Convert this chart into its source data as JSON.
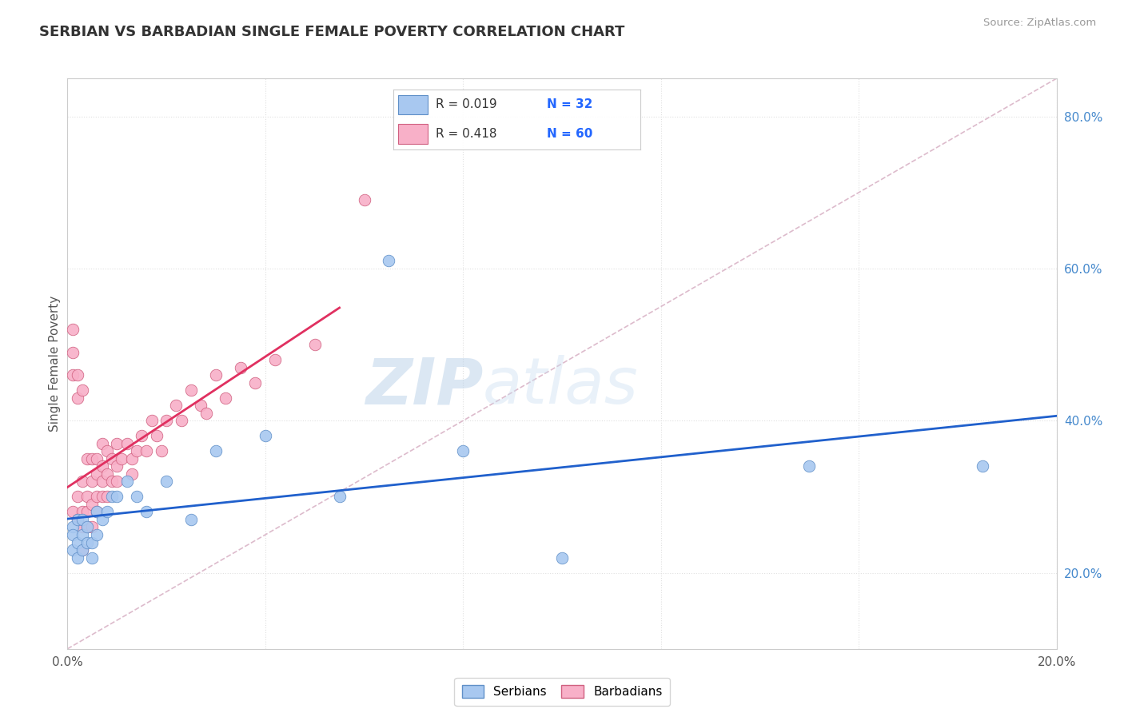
{
  "title": "SERBIAN VS BARBADIAN SINGLE FEMALE POVERTY CORRELATION CHART",
  "source": "Source: ZipAtlas.com",
  "ylabel": "Single Female Poverty",
  "xlim": [
    0.0,
    0.2
  ],
  "ylim": [
    0.1,
    0.85
  ],
  "x_ticks": [
    0.0,
    0.04,
    0.08,
    0.12,
    0.16,
    0.2
  ],
  "y_ticks_right": [
    0.2,
    0.4,
    0.6,
    0.8
  ],
  "watermark_zip": "ZIP",
  "watermark_atlas": "atlas",
  "serbian_color": "#a8c8f0",
  "barbadian_color": "#f8b0c8",
  "serbian_edge": "#6090c8",
  "barbadian_edge": "#d06080",
  "trend_serbian_color": "#2060cc",
  "trend_barbadian_color": "#e03060",
  "diag_color": "#ddbbcc",
  "grid_color": "#e0e0e0",
  "title_color": "#333333",
  "right_label_color": "#4488cc",
  "legend_value_color": "#2266ff",
  "serbian_points_x": [
    0.001,
    0.001,
    0.001,
    0.002,
    0.002,
    0.002,
    0.003,
    0.003,
    0.003,
    0.004,
    0.004,
    0.005,
    0.005,
    0.006,
    0.006,
    0.007,
    0.008,
    0.009,
    0.01,
    0.012,
    0.014,
    0.016,
    0.02,
    0.025,
    0.03,
    0.04,
    0.055,
    0.065,
    0.08,
    0.1,
    0.15,
    0.185
  ],
  "serbian_points_y": [
    0.26,
    0.23,
    0.25,
    0.24,
    0.27,
    0.22,
    0.25,
    0.23,
    0.27,
    0.26,
    0.24,
    0.24,
    0.22,
    0.25,
    0.28,
    0.27,
    0.28,
    0.3,
    0.3,
    0.32,
    0.3,
    0.28,
    0.32,
    0.27,
    0.36,
    0.38,
    0.3,
    0.61,
    0.36,
    0.22,
    0.34,
    0.34
  ],
  "barbadian_points_x": [
    0.001,
    0.001,
    0.001,
    0.001,
    0.002,
    0.002,
    0.002,
    0.002,
    0.003,
    0.003,
    0.003,
    0.003,
    0.003,
    0.004,
    0.004,
    0.004,
    0.004,
    0.005,
    0.005,
    0.005,
    0.005,
    0.006,
    0.006,
    0.006,
    0.006,
    0.007,
    0.007,
    0.007,
    0.007,
    0.008,
    0.008,
    0.008,
    0.009,
    0.009,
    0.01,
    0.01,
    0.01,
    0.011,
    0.012,
    0.013,
    0.013,
    0.014,
    0.015,
    0.016,
    0.017,
    0.018,
    0.019,
    0.02,
    0.022,
    0.023,
    0.025,
    0.027,
    0.028,
    0.03,
    0.032,
    0.035,
    0.038,
    0.042,
    0.05,
    0.06
  ],
  "barbadian_points_y": [
    0.52,
    0.46,
    0.49,
    0.28,
    0.43,
    0.46,
    0.3,
    0.27,
    0.44,
    0.32,
    0.28,
    0.26,
    0.23,
    0.35,
    0.3,
    0.28,
    0.26,
    0.35,
    0.32,
    0.29,
    0.26,
    0.35,
    0.33,
    0.3,
    0.28,
    0.37,
    0.34,
    0.32,
    0.3,
    0.36,
    0.33,
    0.3,
    0.35,
    0.32,
    0.37,
    0.34,
    0.32,
    0.35,
    0.37,
    0.35,
    0.33,
    0.36,
    0.38,
    0.36,
    0.4,
    0.38,
    0.36,
    0.4,
    0.42,
    0.4,
    0.44,
    0.42,
    0.41,
    0.46,
    0.43,
    0.47,
    0.45,
    0.48,
    0.5,
    0.69
  ],
  "serbian_R": 0.019,
  "barbadian_R": 0.418,
  "serbian_N": 32,
  "barbadian_N": 60,
  "serbian_label": "Serbians",
  "barbadian_label": "Barbadians"
}
